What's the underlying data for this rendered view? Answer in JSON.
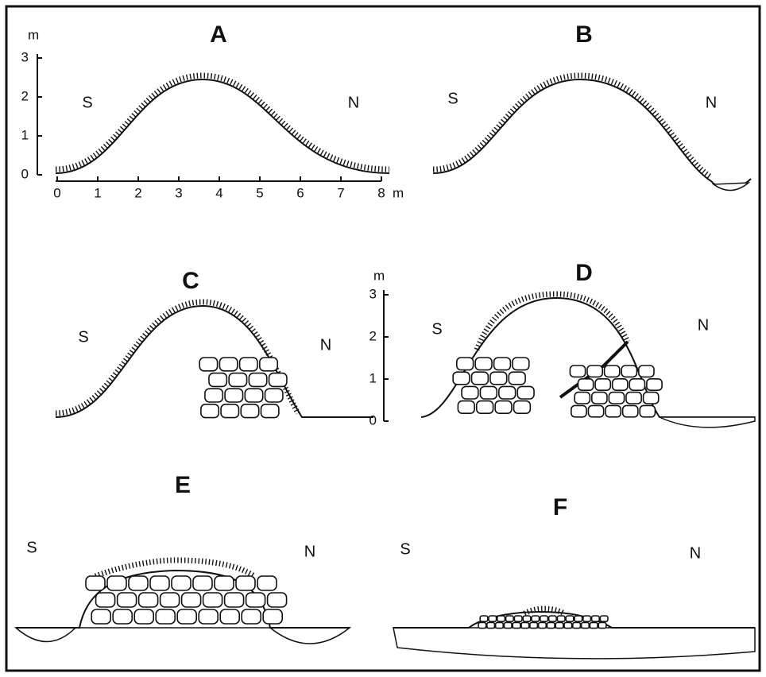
{
  "panels": [
    {
      "label": "A",
      "left": "S",
      "right": "N"
    },
    {
      "label": "B",
      "left": "S",
      "right": "N"
    },
    {
      "label": "C",
      "left": "S",
      "right": "N"
    },
    {
      "label": "D",
      "left": "S",
      "right": "N"
    },
    {
      "label": "E",
      "left": "S",
      "right": "N"
    },
    {
      "label": "F",
      "left": "S",
      "right": "N"
    }
  ],
  "axis_a": {
    "y_unit": "m",
    "y_ticks": [
      "0",
      "1",
      "2",
      "3"
    ],
    "x_ticks": [
      "0",
      "1",
      "2",
      "3",
      "4",
      "5",
      "6",
      "7",
      "8"
    ],
    "x_unit": "m"
  },
  "axis_d": {
    "y_unit": "m",
    "y_ticks": [
      "0",
      "1",
      "2",
      "3"
    ]
  }
}
